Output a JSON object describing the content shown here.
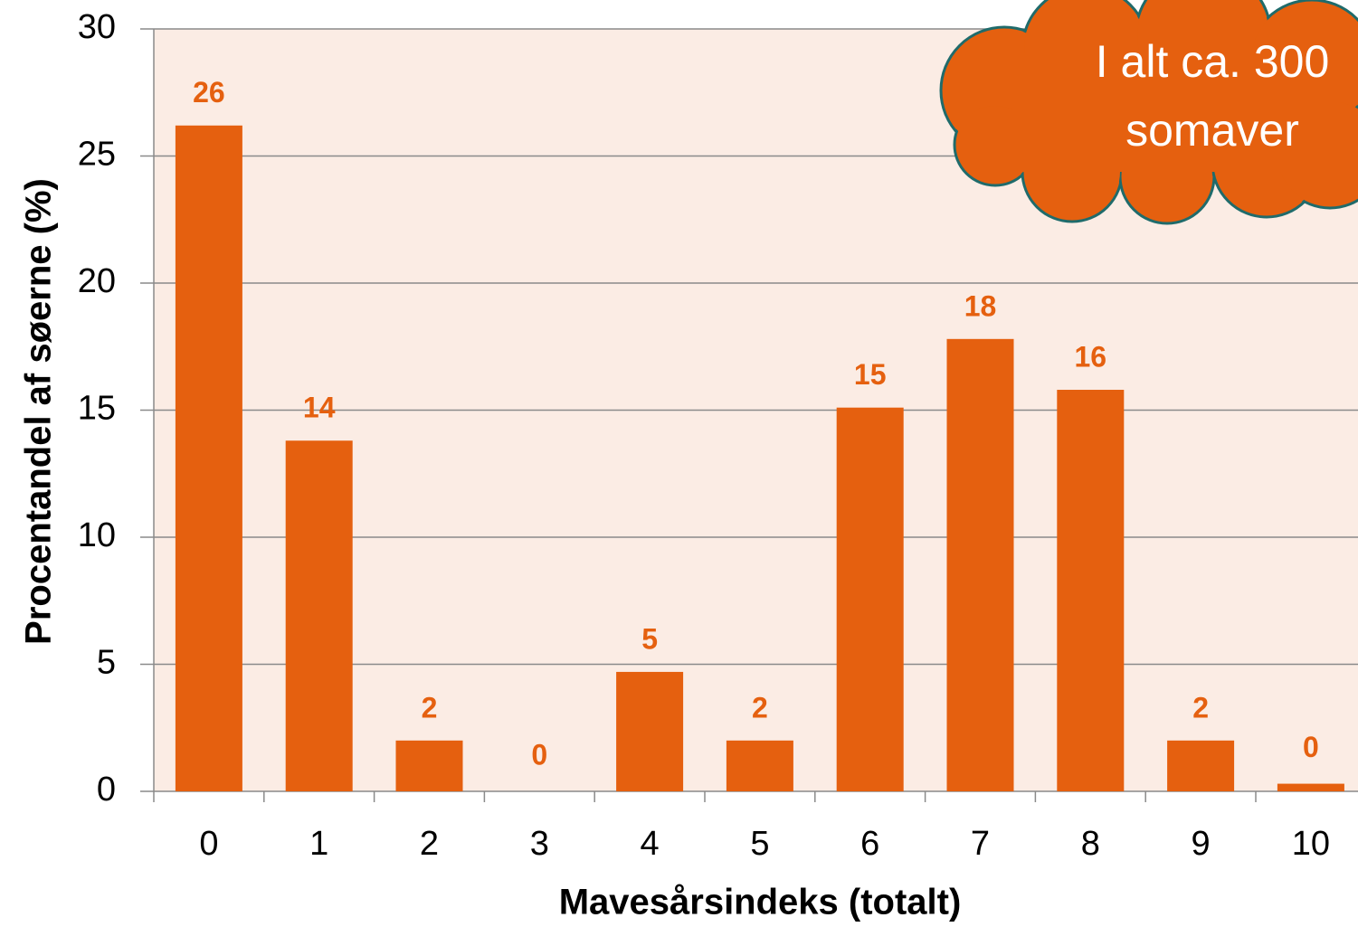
{
  "chart_data": {
    "type": "bar",
    "x_label": "Mavesårsindeks (totalt)",
    "y_label": "Procentandel af søerne (%)",
    "annotation": [
      "I alt ca. 300",
      "somaver"
    ],
    "categories": [
      "0",
      "1",
      "2",
      "3",
      "4",
      "5",
      "6",
      "7",
      "8",
      "9",
      "10"
    ],
    "values": [
      26.2,
      13.8,
      2.0,
      0,
      4.7,
      2.0,
      15.1,
      17.8,
      15.8,
      2.0,
      0.3
    ],
    "value_labels": [
      "26",
      "14",
      "2",
      "0",
      "5",
      "2",
      "15",
      "18",
      "16",
      "2",
      "0"
    ],
    "color": "#e5600f",
    "ylim": [
      0,
      30
    ],
    "yticks": [
      0,
      5,
      10,
      15,
      20,
      25,
      30
    ],
    "grid": true
  }
}
